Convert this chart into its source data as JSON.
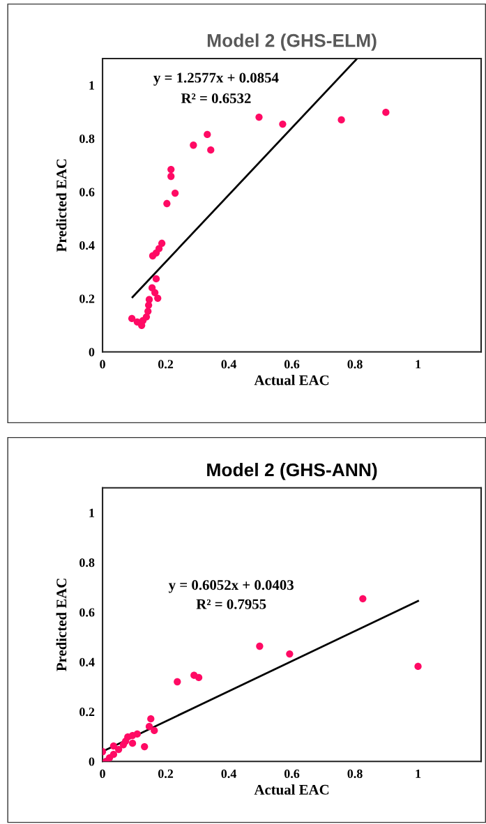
{
  "chart_data": [
    {
      "type": "scatter",
      "title": "Model 2 (GHS-ELM)",
      "xlabel": "Actual EAC",
      "ylabel": "Predicted EAC",
      "xlim": [
        0,
        1.2
      ],
      "ylim": [
        0,
        1.1
      ],
      "xticks": [
        0,
        0.2,
        0.4,
        0.6,
        0.8,
        1
      ],
      "yticks": [
        0,
        0.2,
        0.4,
        0.6,
        0.8,
        1
      ],
      "grid": false,
      "legend": false,
      "annotations": [
        "y = 1.2577x + 0.0854",
        "R² = 0.6532"
      ],
      "series": [
        {
          "marker": "circle",
          "color": "#ff0a64",
          "x": [
            0.898,
            0.757,
            0.571,
            0.496,
            0.332,
            0.343,
            0.288,
            0.217,
            0.217,
            0.23,
            0.204,
            0.188,
            0.179,
            0.17,
            0.159,
            0.17,
            0.157,
            0.166,
            0.175,
            0.148,
            0.146,
            0.144,
            0.139,
            0.124,
            0.11,
            0.093,
            0.128
          ],
          "values": [
            0.898,
            0.87,
            0.854,
            0.88,
            0.815,
            0.757,
            0.775,
            0.684,
            0.658,
            0.595,
            0.556,
            0.407,
            0.387,
            0.371,
            0.36,
            0.274,
            0.24,
            0.222,
            0.201,
            0.196,
            0.175,
            0.152,
            0.131,
            0.099,
            0.112,
            0.125,
            0.117
          ]
        },
        {
          "type": "line",
          "color": "#000000",
          "x": [
            0.095,
            0.807
          ],
          "values": [
            0.205,
            1.1
          ]
        }
      ]
    },
    {
      "type": "scatter",
      "title": "Model 2 (GHS-ANN)",
      "xlabel": "Actual EAC",
      "ylabel": "Predicted EAC",
      "xlim": [
        0,
        1.2
      ],
      "ylim": [
        0,
        1.1
      ],
      "xticks": [
        0,
        0.2,
        0.4,
        0.6,
        0.8,
        1
      ],
      "yticks": [
        0,
        0.2,
        0.4,
        0.6,
        0.8,
        1
      ],
      "grid": false,
      "legend": false,
      "annotations": [
        "y = 0.6052x + 0.0403",
        "R² = 0.7955"
      ],
      "series": [
        {
          "marker": "circle",
          "color": "#ff0a64",
          "x": [
            1.0,
            0.825,
            0.593,
            0.498,
            0.305,
            0.29,
            0.237,
            0.153,
            0.148,
            0.164,
            0.133,
            0.11,
            0.095,
            0.08,
            0.066,
            0.051,
            0.035,
            0.035,
            0.022,
            0.011,
            0.0,
            0.073,
            0.095
          ],
          "values": [
            0.382,
            0.654,
            0.432,
            0.463,
            0.337,
            0.346,
            0.32,
            0.171,
            0.14,
            0.124,
            0.059,
            0.11,
            0.073,
            0.098,
            0.067,
            0.048,
            0.062,
            0.028,
            0.014,
            0.0,
            0.039,
            0.081,
            0.104
          ]
        },
        {
          "type": "line",
          "color": "#000000",
          "x": [
            0,
            1.0
          ],
          "values": [
            0.04,
            0.645
          ]
        }
      ]
    }
  ]
}
